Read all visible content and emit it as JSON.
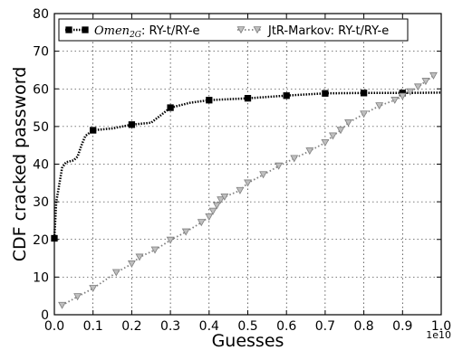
{
  "chart_data": {
    "type": "line",
    "xlabel": "Guesses",
    "ylabel": "CDF cracked password",
    "x_offset_label": "1e10",
    "xlim": [
      0.0,
      1.0
    ],
    "ylim": [
      0,
      80
    ],
    "xticks": [
      "0.0",
      "0.1",
      "0.2",
      "0.3",
      "0.4",
      "0.5",
      "0.6",
      "0.7",
      "0.8",
      "0.9",
      "1.0"
    ],
    "yticks": [
      "0",
      "10",
      "20",
      "30",
      "40",
      "50",
      "60",
      "70",
      "80"
    ],
    "grid": true,
    "legend_position": "top",
    "series": [
      {
        "name": "RY-t/RY-e",
        "name_prefix": "Omen",
        "name_subscript": "2G",
        "name_suffix": ": RY-t/RY-e",
        "color": "#000000",
        "marker": "square",
        "line_style": "dotted",
        "curve": [
          [
            0.0,
            20.3
          ],
          [
            0.005,
            30
          ],
          [
            0.01,
            33
          ],
          [
            0.02,
            39
          ],
          [
            0.03,
            40.5
          ],
          [
            0.05,
            41
          ],
          [
            0.06,
            42
          ],
          [
            0.07,
            45
          ],
          [
            0.08,
            47.5
          ],
          [
            0.1,
            49
          ],
          [
            0.15,
            49.5
          ],
          [
            0.2,
            50.5
          ],
          [
            0.25,
            51
          ],
          [
            0.3,
            55
          ],
          [
            0.35,
            56.3
          ],
          [
            0.4,
            57
          ],
          [
            0.5,
            57.5
          ],
          [
            0.6,
            58.2
          ],
          [
            0.7,
            58.8
          ],
          [
            0.8,
            58.9
          ],
          [
            0.9,
            58.9
          ],
          [
            1.0,
            59.0
          ]
        ],
        "markers": [
          [
            0.0,
            20.3
          ],
          [
            0.1,
            49
          ],
          [
            0.2,
            50.5
          ],
          [
            0.3,
            55
          ],
          [
            0.4,
            57
          ],
          [
            0.5,
            57.5
          ],
          [
            0.6,
            58.2
          ],
          [
            0.7,
            58.8
          ],
          [
            0.8,
            58.9
          ],
          [
            0.9,
            58.9
          ]
        ]
      },
      {
        "name": "JtR-Markov: RY-t/RY-e",
        "color": "#7f7f7f",
        "marker_fill": "#bfbfbf",
        "marker": "triangle-down",
        "line_style": "dotted",
        "curve": [
          [
            0.02,
            2.5
          ],
          [
            0.06,
            4.8
          ],
          [
            0.1,
            7.0
          ],
          [
            0.16,
            11.2
          ],
          [
            0.2,
            13.5
          ],
          [
            0.22,
            15.3
          ],
          [
            0.26,
            17.2
          ],
          [
            0.3,
            19.8
          ],
          [
            0.34,
            22.0
          ],
          [
            0.38,
            24.5
          ],
          [
            0.4,
            26.0
          ],
          [
            0.41,
            27.5
          ],
          [
            0.42,
            29.0
          ],
          [
            0.43,
            30.5
          ],
          [
            0.44,
            31.3
          ],
          [
            0.48,
            33.0
          ],
          [
            0.5,
            35.0
          ],
          [
            0.54,
            37.2
          ],
          [
            0.58,
            39.5
          ],
          [
            0.62,
            41.5
          ],
          [
            0.66,
            43.5
          ],
          [
            0.7,
            45.7
          ],
          [
            0.72,
            47.5
          ],
          [
            0.74,
            49.0
          ],
          [
            0.76,
            51.0
          ],
          [
            0.8,
            53.3
          ],
          [
            0.84,
            55.5
          ],
          [
            0.88,
            57.0
          ],
          [
            0.9,
            58.0
          ],
          [
            0.92,
            59.2
          ],
          [
            0.94,
            60.5
          ],
          [
            0.96,
            62.0
          ],
          [
            0.98,
            63.5
          ]
        ],
        "markers": [
          [
            0.02,
            2.5
          ],
          [
            0.06,
            4.8
          ],
          [
            0.1,
            7.0
          ],
          [
            0.16,
            11.2
          ],
          [
            0.2,
            13.5
          ],
          [
            0.22,
            15.3
          ],
          [
            0.26,
            17.2
          ],
          [
            0.3,
            19.8
          ],
          [
            0.34,
            22.0
          ],
          [
            0.38,
            24.5
          ],
          [
            0.4,
            26.0
          ],
          [
            0.41,
            27.5
          ],
          [
            0.42,
            29.0
          ],
          [
            0.43,
            30.5
          ],
          [
            0.44,
            31.3
          ],
          [
            0.48,
            33.0
          ],
          [
            0.5,
            35.0
          ],
          [
            0.54,
            37.2
          ],
          [
            0.58,
            39.5
          ],
          [
            0.62,
            41.5
          ],
          [
            0.66,
            43.5
          ],
          [
            0.7,
            45.7
          ],
          [
            0.72,
            47.5
          ],
          [
            0.74,
            49.0
          ],
          [
            0.76,
            51.0
          ],
          [
            0.8,
            53.3
          ],
          [
            0.84,
            55.5
          ],
          [
            0.88,
            57.0
          ],
          [
            0.9,
            58.0
          ],
          [
            0.92,
            59.2
          ],
          [
            0.94,
            60.5
          ],
          [
            0.96,
            62.0
          ],
          [
            0.98,
            63.5
          ]
        ]
      }
    ]
  }
}
